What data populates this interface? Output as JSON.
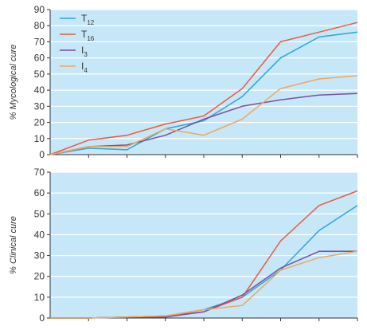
{
  "colors": {
    "plot_background": "#c6e7f8",
    "gridline": "#ffffff",
    "axis": "#333333"
  },
  "chart_data": [
    {
      "type": "line",
      "ylabel": "% Mycological cure",
      "ylim": [
        0,
        90
      ],
      "yticks": [
        0,
        10,
        20,
        30,
        40,
        50,
        60,
        70,
        80,
        90
      ],
      "x": [
        0,
        1,
        2,
        3,
        4,
        5,
        6,
        7,
        8
      ],
      "xlim": [
        0,
        8
      ],
      "grid": true,
      "legend": "top-left",
      "series": [
        {
          "name": "T12",
          "base": "T",
          "sub": "12",
          "color": "#2aa6d9",
          "values": [
            0,
            4,
            3,
            16,
            21,
            36,
            60,
            73,
            76
          ]
        },
        {
          "name": "T16",
          "base": "T",
          "sub": "16",
          "color": "#ec5a3e",
          "values": [
            0,
            9,
            12,
            19,
            24,
            41,
            70,
            76,
            82
          ]
        },
        {
          "name": "I3",
          "base": "I",
          "sub": "3",
          "color": "#7b4fa0",
          "values": [
            0,
            5,
            6,
            12,
            22,
            30,
            34,
            37,
            38
          ]
        },
        {
          "name": "I4",
          "base": "I",
          "sub": "4",
          "color": "#f2a65b",
          "values": [
            0,
            5,
            5,
            16,
            12,
            22,
            41,
            47,
            49
          ]
        }
      ]
    },
    {
      "type": "line",
      "ylabel": "% Clinical cure",
      "ylim": [
        0,
        70
      ],
      "yticks": [
        0,
        10,
        20,
        30,
        40,
        50,
        60,
        70
      ],
      "x": [
        0,
        1,
        2,
        3,
        4,
        5,
        6,
        7,
        8
      ],
      "xlim": [
        0,
        8
      ],
      "grid": true,
      "series": [
        {
          "name": "T12",
          "color": "#2aa6d9",
          "values": [
            0,
            0,
            0.5,
            1,
            4,
            10,
            23,
            42,
            54
          ]
        },
        {
          "name": "T16",
          "color": "#ec5a3e",
          "values": [
            0,
            0,
            0.5,
            1,
            3,
            10,
            37,
            54,
            61
          ]
        },
        {
          "name": "I3",
          "color": "#7b4fa0",
          "values": [
            0,
            0,
            0.5,
            0.5,
            3,
            11,
            24,
            32,
            32
          ]
        },
        {
          "name": "I4",
          "color": "#f2a65b",
          "values": [
            0,
            0,
            0.5,
            1,
            4,
            6,
            23,
            29,
            32
          ]
        }
      ]
    }
  ]
}
